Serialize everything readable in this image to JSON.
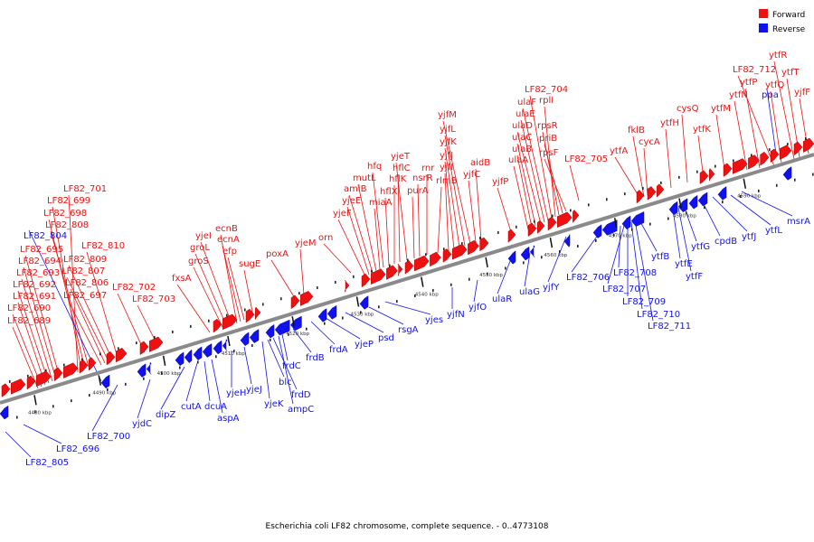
{
  "legend": {
    "forward_label": "Forward",
    "reverse_label": "Reverse",
    "forward_color": "#ee1111",
    "reverse_color": "#1111ee"
  },
  "caption": "Escherichia coli LF82 chromosome, complete sequence. - 0..4773108",
  "axis": {
    "unit": "kbp",
    "ticks": [
      4480,
      4490,
      4500,
      4510,
      4520,
      4530,
      4540,
      4550,
      4560,
      4570,
      4580,
      4590
    ]
  },
  "forward_labels": [
    "LF82_689",
    "LF82_690",
    "LF82_691",
    "LF82_692",
    "LF82_693",
    "LF82_694",
    "LF82_695",
    "LF82_697",
    "LF82_806",
    "LF82_807",
    "LF82_809",
    "LF82_810",
    "LF82_808",
    "LF82_698",
    "LF82_699",
    "LF82_701",
    "LF82_702",
    "LF82_703",
    "fxsA",
    "groS",
    "groL",
    "yjeI",
    "efp",
    "ecnA",
    "ecnB",
    "sugE",
    "poxA",
    "yjeM",
    "orn",
    "yjeF",
    "yjeE",
    "amiB",
    "mutL",
    "miaA",
    "hfq",
    "hflX",
    "hflK",
    "hflC",
    "yjeT",
    "purA",
    "nsrR",
    "rnr",
    "rlmB",
    "yjfI",
    "yjfJ",
    "yjfK",
    "yjfL",
    "yjfM",
    "yjfC",
    "aidB",
    "yjfP",
    "ulaA",
    "ulaB",
    "ulaC",
    "ulaD",
    "ulaE",
    "ulaF",
    "LF82_704",
    "rplI",
    "rpsR",
    "priB",
    "rpsF",
    "LF82_705",
    "ytfA",
    "fklB",
    "cycA",
    "ytfH",
    "cysQ",
    "ytfK",
    "ytfM",
    "ytfN",
    "ytfP",
    "LF82_712",
    "ytfQ",
    "ytfR",
    "ytfT",
    "yjfF"
  ],
  "reverse_labels": [
    "LF82_804",
    "LF82_805",
    "LF82_696",
    "LF82_700",
    "yjdC",
    "dipZ",
    "cutA",
    "dcuA",
    "aspA",
    "yjeH",
    "yjeJ",
    "yjeK",
    "blc",
    "frdD",
    "ampC",
    "frdC",
    "frdB",
    "frdA",
    "yjeP",
    "psd",
    "rsgA",
    "yjes",
    "yjfN",
    "yjfO",
    "ulaR",
    "ulaG",
    "yjfY",
    "LF82_706",
    "LF82_708",
    "LF82_707",
    "LF82_709",
    "LF82_710",
    "LF82_711",
    "ytfB",
    "ytfE",
    "ytfF",
    "ytfG",
    "cpdB",
    "ytfJ",
    "ytfL",
    "msrA",
    "ppa"
  ]
}
